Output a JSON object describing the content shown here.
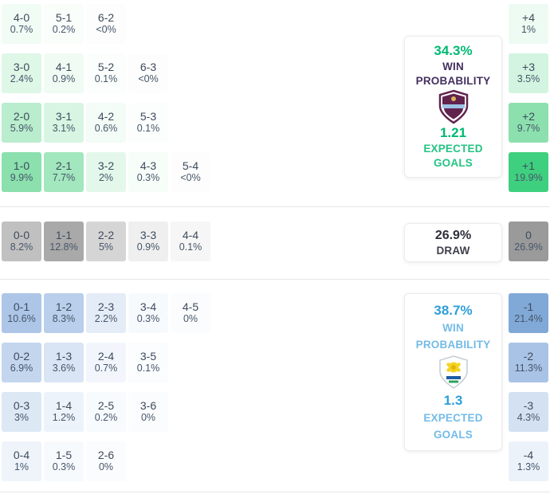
{
  "colors": {
    "home_number": "#00b873",
    "home_win_label": "#44305f",
    "home_eg_label": "#25c383",
    "away_number": "#2e9fd9",
    "away_label": "#74bbe7",
    "draw_text": "#3f3f4d",
    "cell_text": "#3d4b5c",
    "divider": "#e5e5e5",
    "home_heat_max": "#3fd07f",
    "away_heat_max": "#81a9d7",
    "draw_heat_max": "#9a9a9a"
  },
  "chart_data": {
    "type": "heatmap",
    "sections": [
      {
        "id": "home-win",
        "theme": "green",
        "summary": {
          "win_prob": "34.3%",
          "win_label_line1": "WIN",
          "win_label_line2": "PROBABILITY",
          "team_icon": "burnley-crest",
          "expected_goals": "1.21",
          "eg_label_line1": "EXPECTED",
          "eg_label_line2": "GOALS"
        },
        "rows": [
          [
            {
              "score": "4-0",
              "pct": "0.7%",
              "bg": "#f1fcf5"
            },
            {
              "score": "5-1",
              "pct": "0.2%",
              "bg": "#f9fefb"
            },
            {
              "score": "6-2",
              "pct": "<0%",
              "bg": "#fcfdfc"
            }
          ],
          [
            {
              "score": "3-0",
              "pct": "2.4%",
              "bg": "#def7e7"
            },
            {
              "score": "4-1",
              "pct": "0.9%",
              "bg": "#effbf3"
            },
            {
              "score": "5-2",
              "pct": "0.1%",
              "bg": "#fbfefc"
            },
            {
              "score": "6-3",
              "pct": "<0%",
              "bg": "#fcfdfc"
            }
          ],
          [
            {
              "score": "2-0",
              "pct": "5.9%",
              "bg": "#b9edcd"
            },
            {
              "score": "3-1",
              "pct": "3.1%",
              "bg": "#d7f5e2"
            },
            {
              "score": "4-2",
              "pct": "0.6%",
              "bg": "#f3fcf6"
            },
            {
              "score": "5-3",
              "pct": "0.1%",
              "bg": "#fbfefc"
            }
          ],
          [
            {
              "score": "1-0",
              "pct": "9.9%",
              "bg": "#8be0ad"
            },
            {
              "score": "2-1",
              "pct": "7.7%",
              "bg": "#a3e7bf"
            },
            {
              "score": "3-2",
              "pct": "2%",
              "bg": "#e3f8ea"
            },
            {
              "score": "4-3",
              "pct": "0.3%",
              "bg": "#f7fdf9"
            },
            {
              "score": "5-4",
              "pct": "<0%",
              "bg": "#fcfdfc"
            }
          ]
        ],
        "margins": [
          {
            "label": "+4",
            "pct": "1%",
            "bg": "#eefbf2"
          },
          {
            "label": "+3",
            "pct": "3.5%",
            "bg": "#d3f4e0"
          },
          {
            "label": "+2",
            "pct": "9.7%",
            "bg": "#8ce0ae"
          },
          {
            "label": "+1",
            "pct": "19.9%",
            "bg": "#3fd07f"
          }
        ]
      },
      {
        "id": "draw",
        "theme": "gray",
        "summary": {
          "prob": "26.9%",
          "label": "DRAW"
        },
        "rows": [
          [
            {
              "score": "0-0",
              "pct": "8.2%",
              "bg": "#c0c0c0"
            },
            {
              "score": "1-1",
              "pct": "12.8%",
              "bg": "#a9a9a9"
            },
            {
              "score": "2-2",
              "pct": "5%",
              "bg": "#d5d5d5"
            },
            {
              "score": "3-3",
              "pct": "0.9%",
              "bg": "#efefef"
            },
            {
              "score": "4-4",
              "pct": "0.1%",
              "bg": "#f6f6f6"
            }
          ]
        ],
        "margins": [
          {
            "label": "0",
            "pct": "26.9%",
            "bg": "#9a9a9a"
          }
        ]
      },
      {
        "id": "away-win",
        "theme": "blue",
        "summary": {
          "win_prob": "38.7%",
          "win_label_line1": "WIN",
          "win_label_line2": "PROBABILITY",
          "team_icon": "leeds-united-crest",
          "expected_goals": "1.3",
          "eg_label_line1": "EXPECTED",
          "eg_label_line2": "GOALS"
        },
        "rows": [
          [
            {
              "score": "0-1",
              "pct": "10.6%",
              "bg": "#adc6e7"
            },
            {
              "score": "1-2",
              "pct": "8.3%",
              "bg": "#b9cfeb"
            },
            {
              "score": "2-3",
              "pct": "2.2%",
              "bg": "#e4ecf7"
            },
            {
              "score": "3-4",
              "pct": "0.3%",
              "bg": "#f7fafd"
            },
            {
              "score": "4-5",
              "pct": "0%",
              "bg": "#fbfcfe"
            }
          ],
          [
            {
              "score": "0-2",
              "pct": "6.9%",
              "bg": "#c3d6ee"
            },
            {
              "score": "1-3",
              "pct": "3.6%",
              "bg": "#d9e5f4"
            },
            {
              "score": "2-4",
              "pct": "0.7%",
              "bg": "#f2f6fc"
            },
            {
              "score": "3-5",
              "pct": "0.1%",
              "bg": "#fafcfe"
            }
          ],
          [
            {
              "score": "0-3",
              "pct": "3%",
              "bg": "#dde8f5"
            },
            {
              "score": "1-4",
              "pct": "1.2%",
              "bg": "#edf3fa"
            },
            {
              "score": "2-5",
              "pct": "0.2%",
              "bg": "#f8fbfe"
            },
            {
              "score": "3-6",
              "pct": "0%",
              "bg": "#fbfcfe"
            }
          ],
          [
            {
              "score": "0-4",
              "pct": "1%",
              "bg": "#eff4fb"
            },
            {
              "score": "1-5",
              "pct": "0.3%",
              "bg": "#f7fafd"
            },
            {
              "score": "2-6",
              "pct": "0%",
              "bg": "#fbfcfe"
            }
          ]
        ],
        "margins": [
          {
            "label": "-1",
            "pct": "21.4%",
            "bg": "#81a9d7"
          },
          {
            "label": "-2",
            "pct": "11.3%",
            "bg": "#a9c3e6"
          },
          {
            "label": "-3",
            "pct": "4.3%",
            "bg": "#d4e1f3"
          },
          {
            "label": "-4",
            "pct": "1.3%",
            "bg": "#ecf2fa"
          }
        ]
      }
    ]
  }
}
